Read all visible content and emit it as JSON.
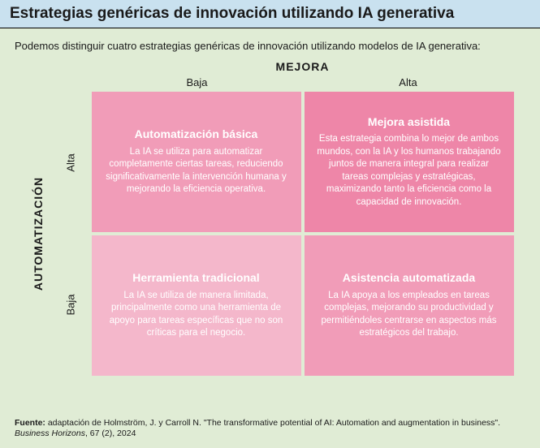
{
  "title": "Estrategias genéricas de innovación utilizando IA generativa",
  "intro": "Podemos distinguir cuatro estrategias genéricas de innovación utilizando modelos de IA generativa:",
  "axes": {
    "top_label": "MEJORA",
    "left_label": "AUTOMATIZACIÓN",
    "cols": [
      "Baja",
      "Alta"
    ],
    "rows": [
      "Alta",
      "Baja"
    ]
  },
  "cells": [
    {
      "title": "Automatización básica",
      "body": "La IA se utiliza para automatizar completamente ciertas tareas, reduciendo significativamente la intervención humana y mejorando la eficiencia operativa.",
      "bg": "#f19cb8"
    },
    {
      "title": "Mejora asistida",
      "body": "Esta estrategia combina lo mejor de ambos mundos, con la IA y los humanos trabajando juntos de manera integral para realizar tareas complejas y estratégicas, maximizando tanto la eficiencia como la capacidad de innovación.",
      "bg": "#ee86a8"
    },
    {
      "title": "Herramienta tradicional",
      "body": "La IA se utiliza de manera limitada, principalmente como una herramienta de apoyo para tareas específicas que no son críticas para el negocio.",
      "bg": "#f4b7cb"
    },
    {
      "title": "Asistencia automatizada",
      "body": "La IA apoya a los empleados en tareas complejas, mejorando su productividad y permitiéndoles centrarse en aspectos más estratégicos del trabajo.",
      "bg": "#f19cb8"
    }
  ],
  "source": {
    "label": "Fuente:",
    "text": " adaptación de Holmström, J. y Carroll N. \"The transformative potential of AI: Automation and augmentation in business\". ",
    "journal": "Business Horizons",
    "rest": ", 67 (2), 2024"
  },
  "colors": {
    "page_bg": "#e0ecd5",
    "title_bg": "#c9e1ef",
    "text": "#1a1a1a",
    "cell_text": "#ffffff"
  }
}
